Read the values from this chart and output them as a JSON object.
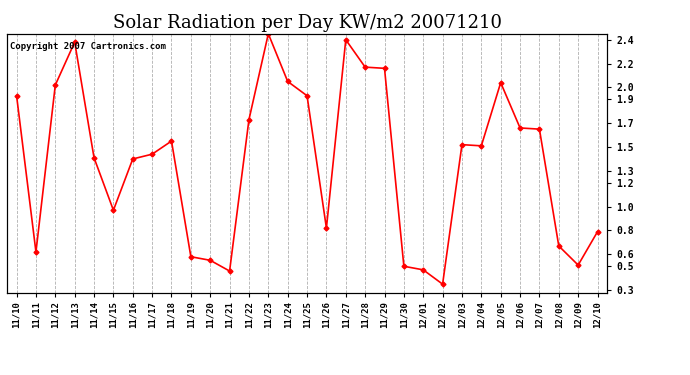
{
  "title": "Solar Radiation per Day KW/m2 20071210",
  "copyright": "Copyright 2007 Cartronics.com",
  "x_labels": [
    "11/10",
    "11/11",
    "11/12",
    "11/13",
    "11/14",
    "11/15",
    "11/16",
    "11/17",
    "11/18",
    "11/19",
    "11/20",
    "11/21",
    "11/22",
    "11/23",
    "11/24",
    "11/25",
    "11/26",
    "11/27",
    "11/28",
    "11/29",
    "11/30",
    "12/01",
    "12/02",
    "12/03",
    "12/04",
    "12/05",
    "12/06",
    "12/07",
    "12/08",
    "12/09",
    "12/10"
  ],
  "y_values": [
    1.93,
    0.62,
    2.02,
    2.38,
    1.41,
    0.97,
    1.4,
    1.44,
    1.55,
    0.58,
    0.55,
    0.46,
    1.73,
    2.45,
    2.05,
    1.93,
    0.82,
    2.4,
    2.17,
    2.16,
    0.5,
    0.47,
    0.35,
    1.52,
    1.51,
    2.04,
    1.66,
    1.65,
    0.67,
    0.51,
    0.79
  ],
  "line_color": "#ff0000",
  "marker": "D",
  "marker_size": 2.5,
  "bg_color": "#ffffff",
  "grid_color": "#b0b0b0",
  "ylim_min": 0.28,
  "ylim_max": 2.45,
  "yticks_right": [
    2.4,
    2.2,
    2.0,
    1.9,
    1.7,
    1.5,
    1.3,
    1.2,
    1.0,
    0.8,
    0.6,
    0.5,
    0.3
  ],
  "title_fontsize": 13,
  "copyright_fontsize": 6.5,
  "tick_fontsize": 7,
  "xlabel_fontsize": 6.5
}
